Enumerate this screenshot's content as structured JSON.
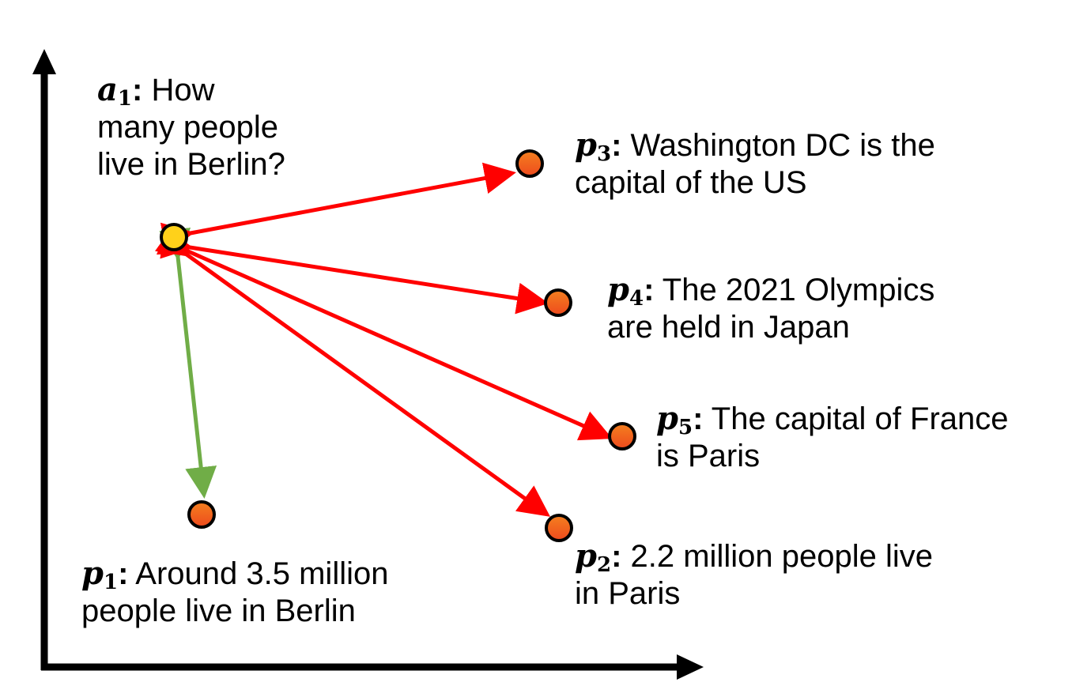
{
  "colors": {
    "axis": "#000000",
    "negative_edge": "#ff0000",
    "positive_edge": "#70ad47",
    "anchor_fill": "#ffd11a",
    "passage_fill_top": "#f4801f",
    "passage_fill_bottom": "#ee4a1e",
    "node_stroke": "#000000"
  },
  "nodes": {
    "a1": {
      "sym": "a",
      "sub": "1",
      "lines": [
        "How",
        "many people",
        "live in Berlin?"
      ]
    },
    "p1": {
      "sym": "p",
      "sub": "1",
      "lines": [
        "Around 3.5 million",
        "people live in Berlin"
      ]
    },
    "p2": {
      "sym": "p",
      "sub": "2",
      "lines": [
        "2.2 million people live",
        "in Paris"
      ]
    },
    "p3": {
      "sym": "p",
      "sub": "3",
      "lines": [
        "Washington DC is the",
        "capital of the US"
      ]
    },
    "p4": {
      "sym": "p",
      "sub": "4",
      "lines": [
        "The 2021 Olympics",
        "are held in Japan"
      ]
    },
    "p5": {
      "sym": "p",
      "sub": "5",
      "lines": [
        "The capital of France",
        "is Paris"
      ]
    }
  },
  "edges": [
    {
      "from": "a1",
      "to": "p1",
      "kind": "positive"
    },
    {
      "from": "a1",
      "to": "p2",
      "kind": "negative"
    },
    {
      "from": "a1",
      "to": "p3",
      "kind": "negative"
    },
    {
      "from": "a1",
      "to": "p4",
      "kind": "negative"
    },
    {
      "from": "a1",
      "to": "p5",
      "kind": "negative"
    }
  ]
}
